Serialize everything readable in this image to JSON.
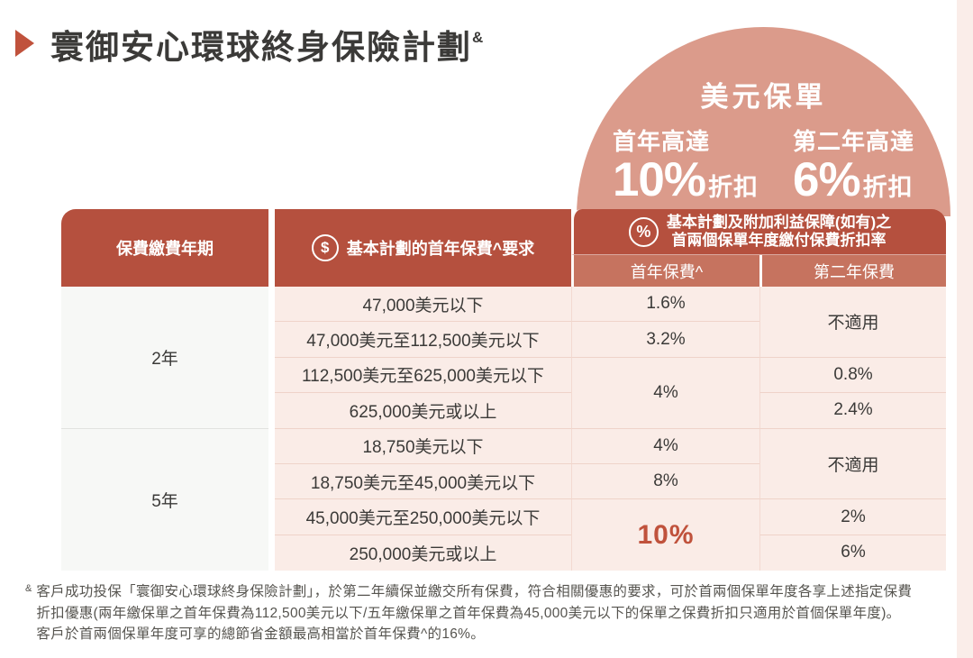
{
  "page": {
    "title": "寰御安心環球終身保險計劃",
    "title_mark": "&"
  },
  "dome": {
    "heading": "美元保單",
    "offers": [
      {
        "label": "首年高達",
        "value": "10%",
        "suffix": "折扣"
      },
      {
        "label": "第二年高達",
        "value": "6%",
        "suffix": "折扣"
      }
    ]
  },
  "table": {
    "col1_header": "保費繳費年期",
    "col2_icon": "$",
    "col2_header": "基本計劃的首年保費^要求",
    "col3_icon": "%",
    "col3_header_line1": "基本計劃及附加利益保障(如有)之",
    "col3_header_line2": "首兩個保單年度繳付保費折扣率",
    "sub_headers": [
      "首年保費^",
      "第二年保費"
    ],
    "periods": [
      "2年",
      "5年"
    ],
    "tiers": [
      "47,000美元以下",
      "47,000美元至112,500美元以下",
      "112,500美元至625,000美元以下",
      "625,000美元或以上",
      "18,750美元以下",
      "18,750美元至45,000美元以下",
      "45,000美元至250,000美元以下",
      "250,000美元或以上"
    ],
    "year1_discounts": [
      "1.6%",
      "3.2%",
      "4%",
      "4%",
      "8%",
      "10%"
    ],
    "year2_discounts": [
      "不適用",
      "0.8%",
      "2.4%",
      "不適用",
      "2%",
      "6%"
    ]
  },
  "footnote": {
    "marker": "&",
    "lines": [
      "客戶成功投保「寰御安心環球終身保險計劃」，於第二年續保並繳交所有保費，符合相關優惠的要求，可於首兩個保單年度各享上述指定保費",
      "折扣優惠(兩年繳保單之首年保費為112,500美元以下/五年繳保單之首年保費為45,000美元以下的保單之保費折扣只適用於首個保單年度)。",
      "客戶於首兩個保單年度可享的總節省金額最高相當於首年保費^的16%。"
    ]
  },
  "colors": {
    "header_red": "#B5503E",
    "subheader_red": "#C6735F",
    "dome_salmon": "#DB9B8B",
    "cell_pink": "#FAECE7",
    "row_line": "#EFD3C9",
    "col_line": "#F3DAD1",
    "period_cell_bg": "#F7F8F6",
    "period_line": "#E2E2DF",
    "accent_red": "#C0523C",
    "text_dark": "#3B3A38",
    "footnote_gray": "#56544F",
    "side_strip": "#FAEDE9"
  }
}
